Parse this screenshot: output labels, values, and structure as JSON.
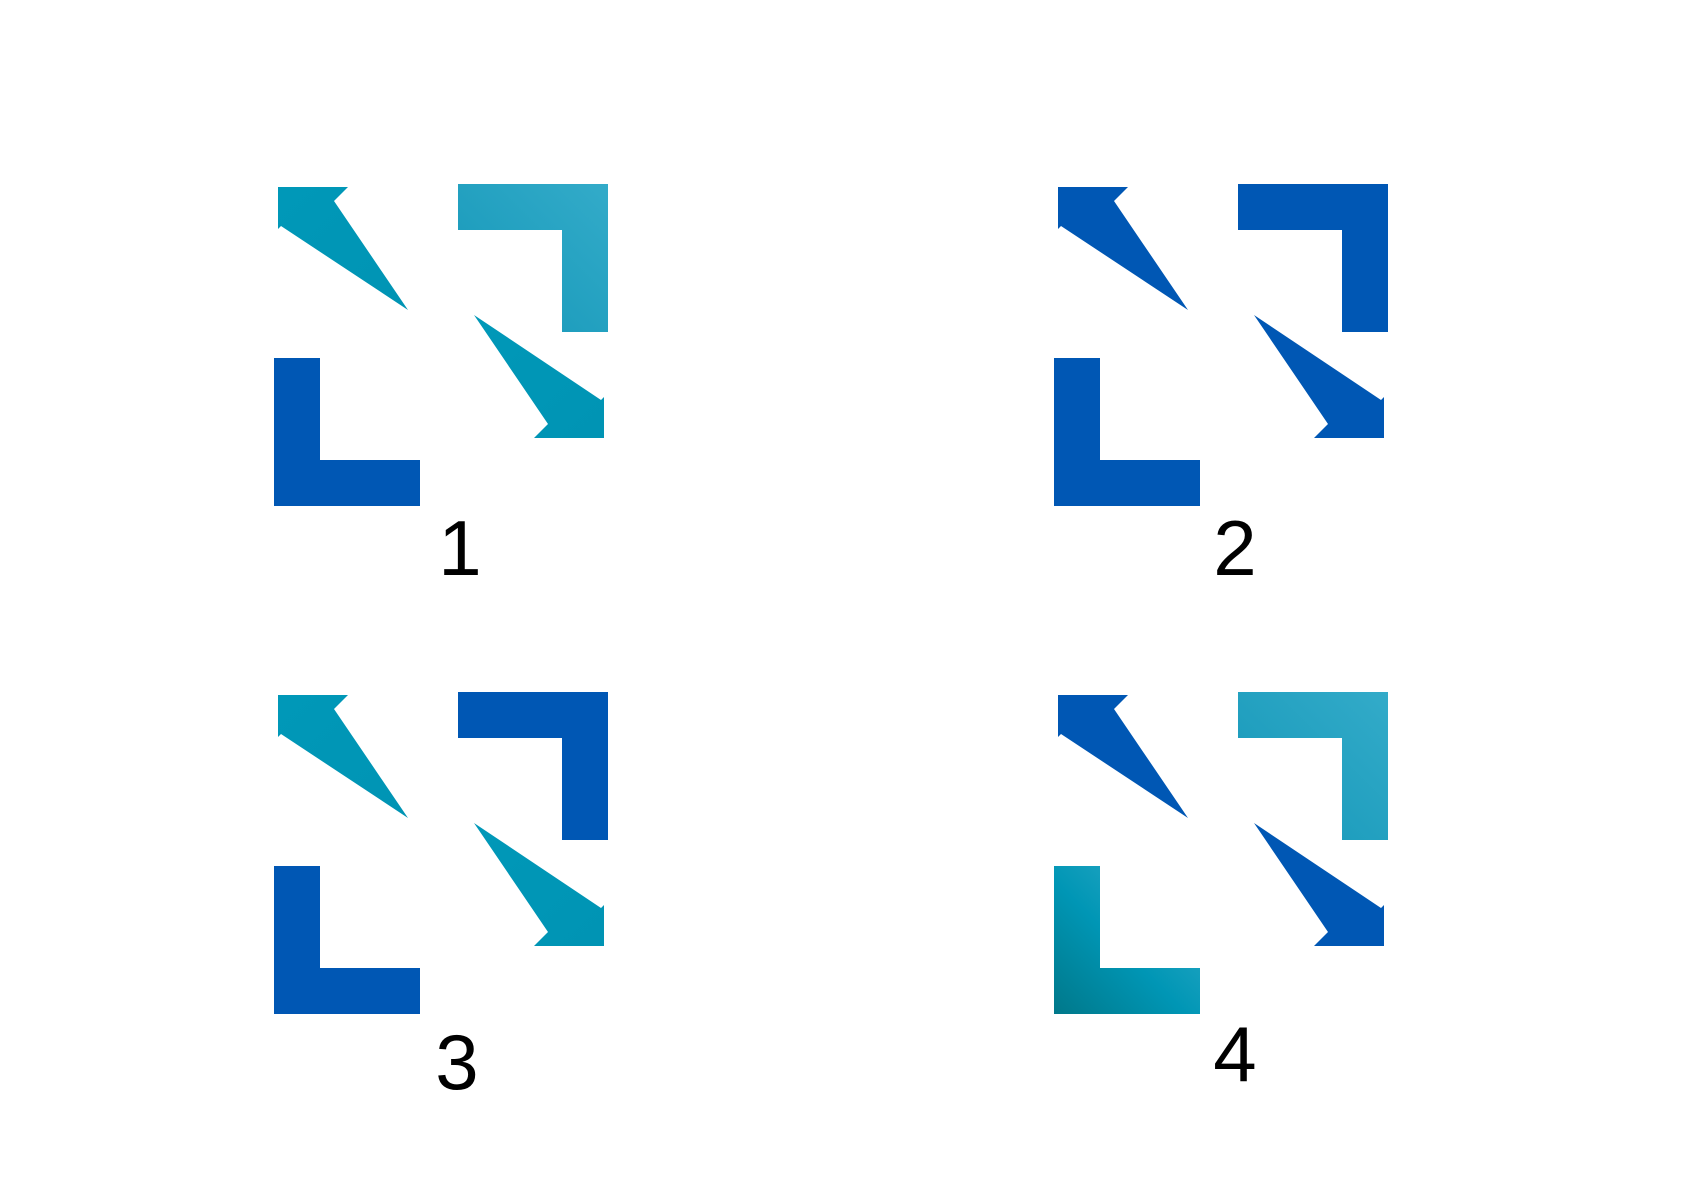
{
  "colors": {
    "blue": "#0057b4",
    "teal": "#0097b6",
    "light_teal": "#2aa8c7",
    "dark_teal": "#00808f"
  },
  "variants": [
    {
      "label": "1",
      "shapes": {
        "top_left_arrow": "teal",
        "top_right_corner": "light_teal",
        "bottom_left_corner": "blue",
        "bottom_right_arrow": "teal"
      }
    },
    {
      "label": "2",
      "shapes": {
        "top_left_arrow": "blue",
        "top_right_corner": "blue",
        "bottom_left_corner": "blue",
        "bottom_right_arrow": "blue"
      }
    },
    {
      "label": "3",
      "shapes": {
        "top_left_arrow": "teal",
        "top_right_corner": "blue",
        "bottom_left_corner": "blue",
        "bottom_right_arrow": "teal"
      }
    },
    {
      "label": "4",
      "shapes": {
        "top_left_arrow": "blue",
        "top_right_corner": "light_teal",
        "bottom_left_corner": "dark_teal",
        "bottom_right_arrow": "blue"
      }
    }
  ]
}
